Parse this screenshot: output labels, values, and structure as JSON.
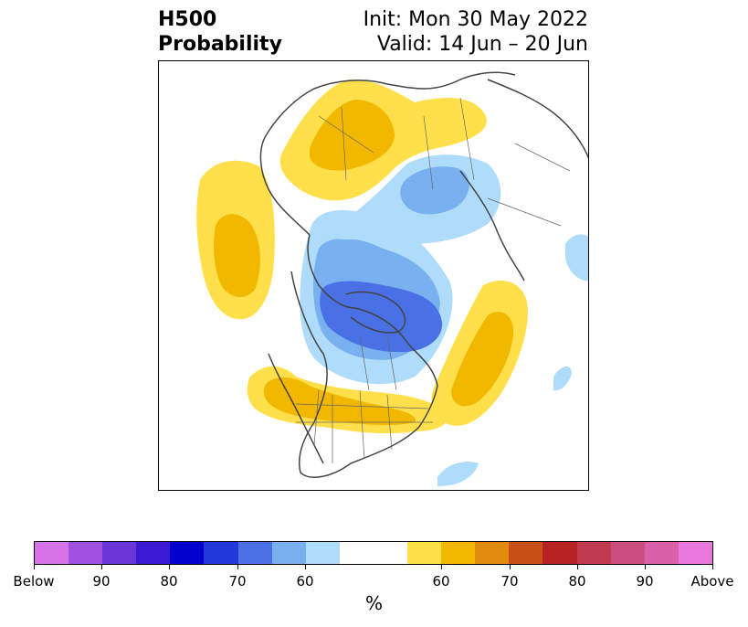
{
  "title": {
    "left_line1": "H500",
    "left_line2": "Probability",
    "right_line1": "Init: Mon 30 May 2022",
    "right_line2": "Valid: 14 Jun – 20 Jun"
  },
  "colorbar": {
    "unit": "%",
    "colors": [
      "#d673e6",
      "#a050e0",
      "#6a36d8",
      "#3a1ad2",
      "#0000cc",
      "#2238d8",
      "#4a70e6",
      "#78b0f0",
      "#aedcfa",
      "#ffffff",
      "#ffe04a",
      "#f2b800",
      "#e08a10",
      "#c85018",
      "#b42222",
      "#c03a50",
      "#cc4e80",
      "#da60aa",
      "#e878dc"
    ],
    "labels": [
      "Below",
      "90",
      "80",
      "70",
      "60",
      "60",
      "70",
      "80",
      "90",
      "Above"
    ]
  },
  "map": {
    "projection": "North polar stereographic",
    "legend_meaning": {
      "blue": "Below normal 500mb height probability",
      "yellow": "Above normal 500mb height probability"
    }
  }
}
